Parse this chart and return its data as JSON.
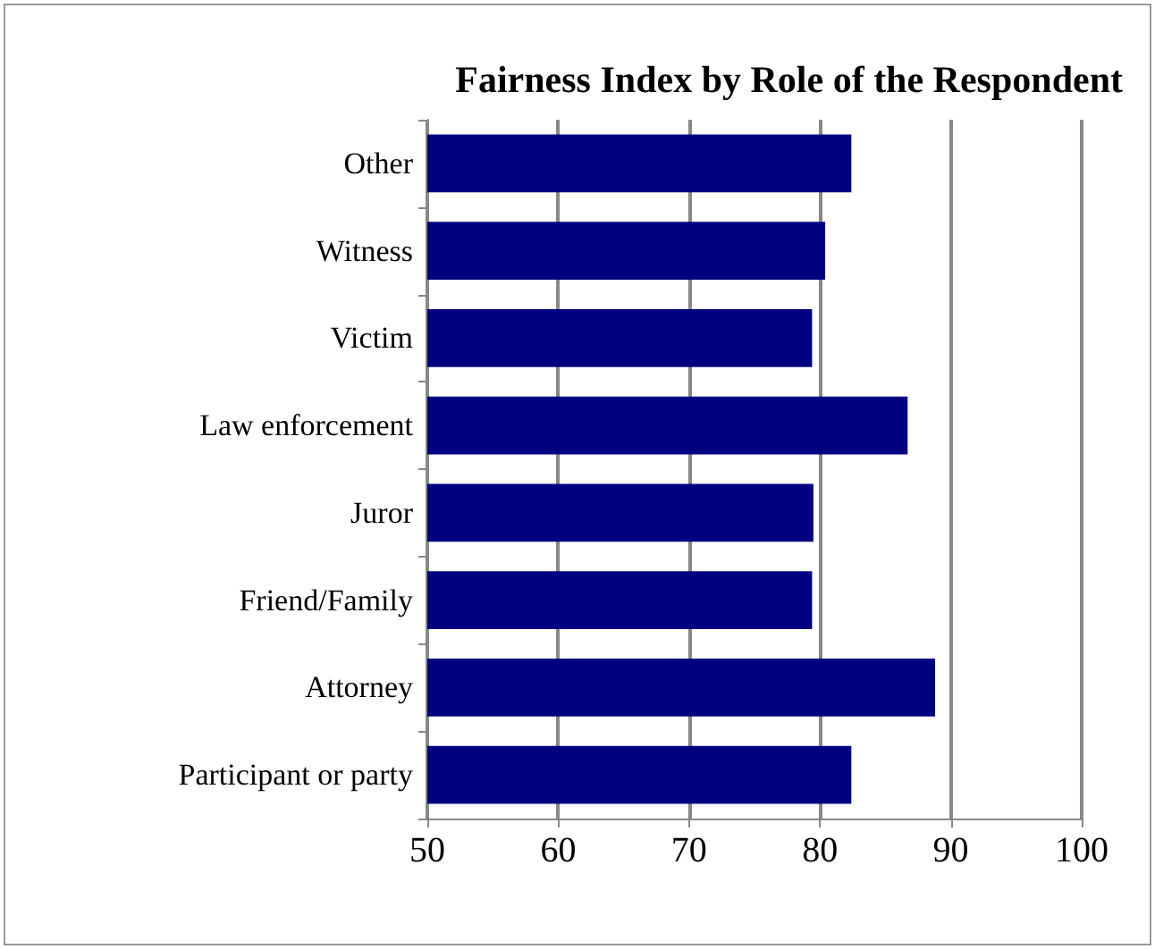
{
  "chart_data": {
    "type": "bar",
    "orientation": "horizontal",
    "title": "Fairness Index by Role of the Respondent",
    "categories": [
      "Other",
      "Witness",
      "Victim",
      "Law enforcement",
      "Juror",
      "Friend/Family",
      "Attorney",
      "Participant or party"
    ],
    "values": [
      82.4,
      80.4,
      79.4,
      86.7,
      79.5,
      79.4,
      88.8,
      82.4
    ],
    "color": "#000080",
    "xlim": [
      50,
      100
    ],
    "xticks": [
      50,
      60,
      70,
      80,
      90,
      100
    ],
    "grid": "x"
  }
}
